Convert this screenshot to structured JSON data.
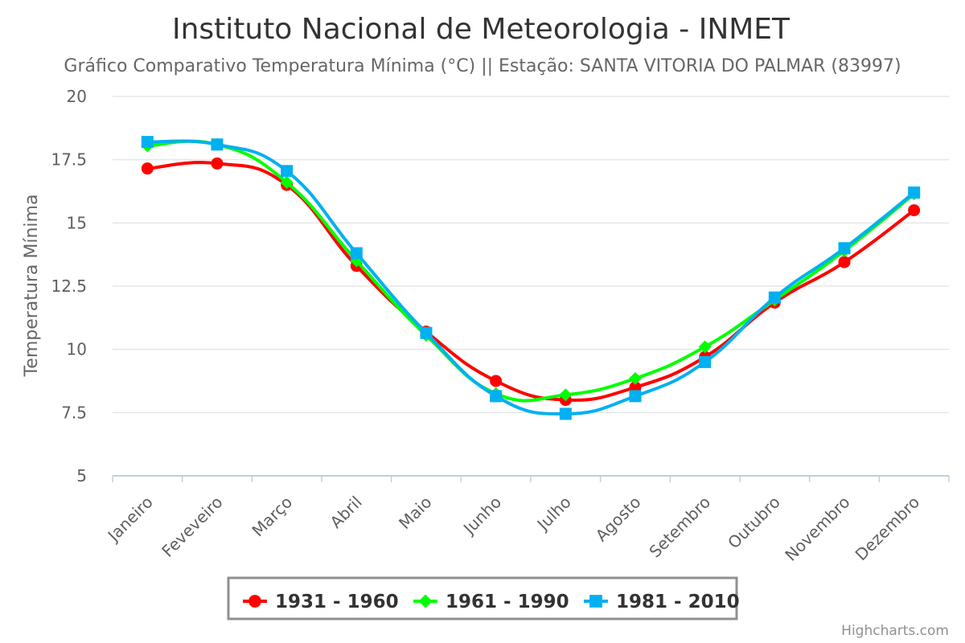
{
  "chart_data": {
    "type": "line",
    "title": "Instituto Nacional de Meteorologia - INMET",
    "subtitle": "Gráfico Comparativo Temperatura Mínima (°C) || Estação: SANTA VITORIA DO PALMAR (83997)",
    "ylabel": "Temperatura Mínima",
    "xlabel": "",
    "ylim": [
      5,
      20
    ],
    "yticks": [
      "5",
      "7.5",
      "10",
      "12.5",
      "15",
      "17.5",
      "20"
    ],
    "grid": true,
    "legend_position": "bottom-center",
    "categories": [
      "Janeiro",
      "Feveveiro",
      "Março",
      "Abril",
      "Maio",
      "Junho",
      "Julho",
      "Agosto",
      "Setembro",
      "Outubro",
      "Novembro",
      "Dezembro"
    ],
    "series": [
      {
        "name": "1931 - 1960",
        "color": "#ff0000",
        "marker": "circle",
        "values": [
          17.15,
          17.35,
          16.5,
          13.3,
          10.7,
          8.75,
          8.0,
          8.5,
          9.7,
          11.85,
          13.45,
          15.5
        ]
      },
      {
        "name": "1961 - 1990",
        "color": "#00ff00",
        "marker": "diamond",
        "values": [
          18.05,
          18.1,
          16.6,
          13.5,
          10.55,
          8.25,
          8.2,
          8.85,
          10.1,
          11.95,
          13.9,
          16.15
        ]
      },
      {
        "name": "1981 - 2010",
        "color": "#00b0f0",
        "marker": "square",
        "values": [
          18.2,
          18.1,
          17.05,
          13.8,
          10.65,
          8.15,
          7.45,
          8.15,
          9.5,
          12.05,
          14.0,
          16.2
        ]
      }
    ],
    "credits": "Highcharts.com"
  }
}
